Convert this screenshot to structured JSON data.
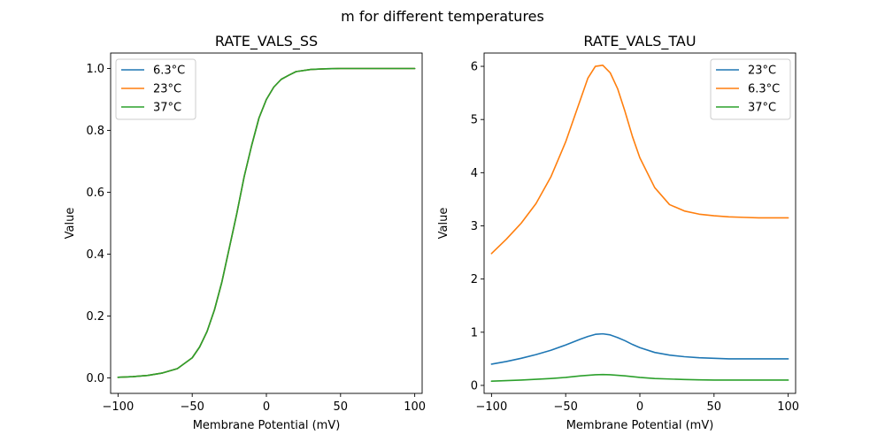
{
  "figure": {
    "suptitle": "m for different temperatures"
  },
  "chart_data": [
    {
      "type": "line",
      "title": "RATE_VALS_SS",
      "xlabel": "Membrane Potential (mV)",
      "ylabel": "Value",
      "xlim": [
        -105,
        105
      ],
      "ylim": [
        -0.05,
        1.05
      ],
      "xticks": [
        -100,
        -50,
        0,
        50,
        100
      ],
      "xtick_labels": [
        "−100",
        "−50",
        "0",
        "50",
        "100"
      ],
      "yticks": [
        0.0,
        0.2,
        0.4,
        0.6,
        0.8,
        1.0
      ],
      "ytick_labels": [
        "0.0",
        "0.2",
        "0.4",
        "0.6",
        "0.8",
        "1.0"
      ],
      "grid": false,
      "legend_position": "upper-left",
      "x": [
        -100,
        -90,
        -80,
        -70,
        -60,
        -50,
        -45,
        -40,
        -35,
        -30,
        -25,
        -20,
        -15,
        -10,
        -5,
        0,
        5,
        10,
        15,
        20,
        30,
        40,
        50,
        60,
        70,
        80,
        90,
        100
      ],
      "series": [
        {
          "name": "6.3°C",
          "color": "#1f77b4",
          "values": [
            0.002,
            0.004,
            0.008,
            0.016,
            0.03,
            0.065,
            0.1,
            0.15,
            0.22,
            0.31,
            0.42,
            0.53,
            0.65,
            0.75,
            0.84,
            0.9,
            0.94,
            0.965,
            0.978,
            0.99,
            0.997,
            0.999,
            1.0,
            1.0,
            1.0,
            1.0,
            1.0,
            1.0
          ]
        },
        {
          "name": "23°C",
          "color": "#ff7f0e",
          "values": [
            0.002,
            0.004,
            0.008,
            0.016,
            0.03,
            0.065,
            0.1,
            0.15,
            0.22,
            0.31,
            0.42,
            0.53,
            0.65,
            0.75,
            0.84,
            0.9,
            0.94,
            0.965,
            0.978,
            0.99,
            0.997,
            0.999,
            1.0,
            1.0,
            1.0,
            1.0,
            1.0,
            1.0
          ]
        },
        {
          "name": "37°C",
          "color": "#2ca02c",
          "values": [
            0.002,
            0.004,
            0.008,
            0.016,
            0.03,
            0.065,
            0.1,
            0.15,
            0.22,
            0.31,
            0.42,
            0.53,
            0.65,
            0.75,
            0.84,
            0.9,
            0.94,
            0.965,
            0.978,
            0.99,
            0.997,
            0.999,
            1.0,
            1.0,
            1.0,
            1.0,
            1.0,
            1.0
          ]
        }
      ]
    },
    {
      "type": "line",
      "title": "RATE_VALS_TAU",
      "xlabel": "Membrane Potential (mV)",
      "ylabel": "Value",
      "xlim": [
        -105,
        105
      ],
      "ylim": [
        -0.15,
        6.25
      ],
      "xticks": [
        -100,
        -50,
        0,
        50,
        100
      ],
      "xtick_labels": [
        "−100",
        "−50",
        "0",
        "50",
        "100"
      ],
      "yticks": [
        0,
        1,
        2,
        3,
        4,
        5,
        6
      ],
      "ytick_labels": [
        "0",
        "1",
        "2",
        "3",
        "4",
        "5",
        "6"
      ],
      "grid": false,
      "legend_position": "upper-right",
      "x": [
        -100,
        -90,
        -80,
        -70,
        -60,
        -50,
        -40,
        -35,
        -30,
        -25,
        -20,
        -15,
        -10,
        -5,
        0,
        10,
        20,
        30,
        40,
        50,
        60,
        70,
        80,
        90,
        100
      ],
      "series": [
        {
          "name": "23°C",
          "color": "#1f77b4",
          "values": [
            0.4,
            0.45,
            0.51,
            0.58,
            0.66,
            0.76,
            0.87,
            0.92,
            0.96,
            0.97,
            0.95,
            0.9,
            0.84,
            0.77,
            0.71,
            0.62,
            0.57,
            0.54,
            0.52,
            0.51,
            0.5,
            0.5,
            0.5,
            0.5,
            0.5
          ]
        },
        {
          "name": "6.3°C",
          "color": "#ff7f0e",
          "values": [
            2.48,
            2.75,
            3.05,
            3.42,
            3.92,
            4.58,
            5.38,
            5.78,
            6.0,
            6.02,
            5.88,
            5.58,
            5.15,
            4.68,
            4.28,
            3.72,
            3.4,
            3.28,
            3.22,
            3.19,
            3.17,
            3.16,
            3.15,
            3.15,
            3.15
          ]
        },
        {
          "name": "37°C",
          "color": "#2ca02c",
          "values": [
            0.08,
            0.09,
            0.1,
            0.115,
            0.13,
            0.15,
            0.18,
            0.19,
            0.2,
            0.205,
            0.2,
            0.19,
            0.18,
            0.165,
            0.15,
            0.13,
            0.12,
            0.11,
            0.105,
            0.1,
            0.1,
            0.1,
            0.1,
            0.1,
            0.1
          ]
        }
      ]
    }
  ]
}
